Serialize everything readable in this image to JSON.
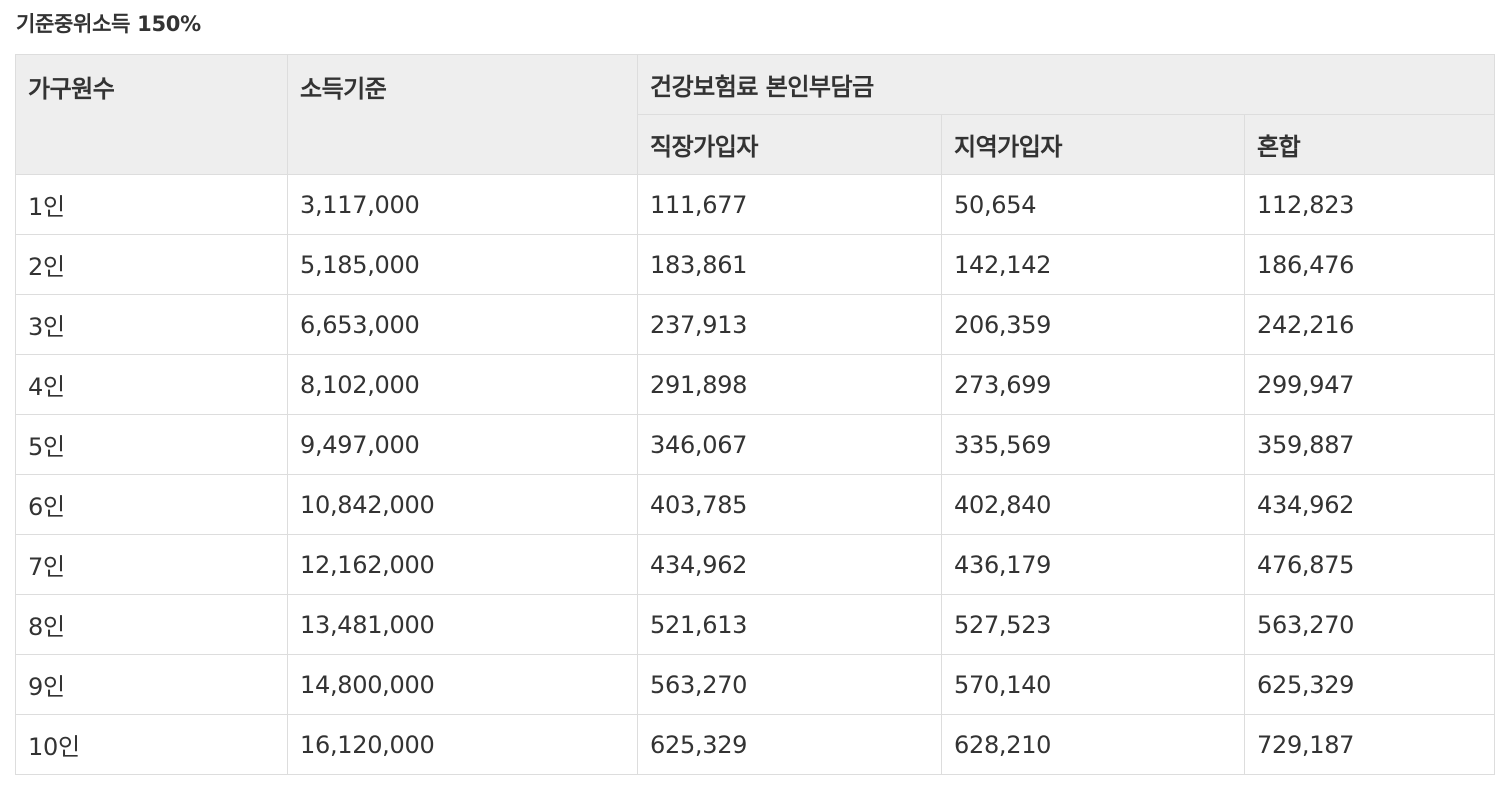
{
  "title": "기준중위소득 150%",
  "table": {
    "headers": {
      "household": "가구원수",
      "income": "소득기준",
      "premium_group": "건강보험료 본인부담금",
      "employee": "직장가입자",
      "regional": "지역가입자",
      "mixed": "혼합"
    },
    "rows": [
      {
        "household": "1인",
        "income": "3,117,000",
        "employee": "111,677",
        "regional": "50,654",
        "mixed": "112,823"
      },
      {
        "household": "2인",
        "income": "5,185,000",
        "employee": "183,861",
        "regional": "142,142",
        "mixed": "186,476"
      },
      {
        "household": "3인",
        "income": "6,653,000",
        "employee": "237,913",
        "regional": "206,359",
        "mixed": "242,216"
      },
      {
        "household": "4인",
        "income": "8,102,000",
        "employee": "291,898",
        "regional": "273,699",
        "mixed": "299,947"
      },
      {
        "household": "5인",
        "income": "9,497,000",
        "employee": "346,067",
        "regional": "335,569",
        "mixed": "359,887"
      },
      {
        "household": "6인",
        "income": "10,842,000",
        "employee": "403,785",
        "regional": "402,840",
        "mixed": "434,962"
      },
      {
        "household": "7인",
        "income": "12,162,000",
        "employee": "434,962",
        "regional": "436,179",
        "mixed": "476,875"
      },
      {
        "household": "8인",
        "income": "13,481,000",
        "employee": "521,613",
        "regional": "527,523",
        "mixed": "563,270"
      },
      {
        "household": "9인",
        "income": "14,800,000",
        "employee": "563,270",
        "regional": "570,140",
        "mixed": "625,329"
      },
      {
        "household": "10인",
        "income": "16,120,000",
        "employee": "625,329",
        "regional": "628,210",
        "mixed": "729,187"
      }
    ]
  }
}
